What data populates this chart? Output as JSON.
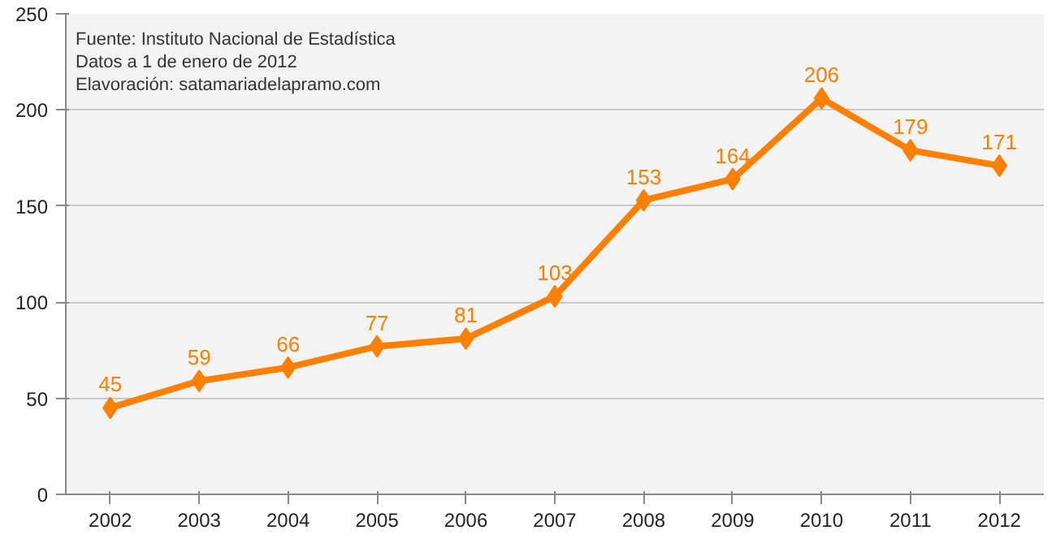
{
  "chart_data": {
    "type": "line",
    "categories": [
      "2002",
      "2003",
      "2004",
      "2005",
      "2006",
      "2007",
      "2008",
      "2009",
      "2010",
      "2011",
      "2012"
    ],
    "series": [
      {
        "color": "#ff7f00",
        "values": [
          45,
          59,
          66,
          77,
          81,
          103,
          153,
          164,
          206,
          179,
          171
        ]
      }
    ],
    "ylim": [
      0,
      250
    ],
    "yticks": [
      0,
      50,
      100,
      150,
      200,
      250
    ],
    "grid": "y",
    "marker": "diamond",
    "line_style": "solid",
    "data_labels": true,
    "annotations": [
      "Fuente: Instituto Nacional de Estadística",
      "Datos a 1 de enero de 2012",
      "Elavoración: satamariadelapramo.com"
    ]
  }
}
